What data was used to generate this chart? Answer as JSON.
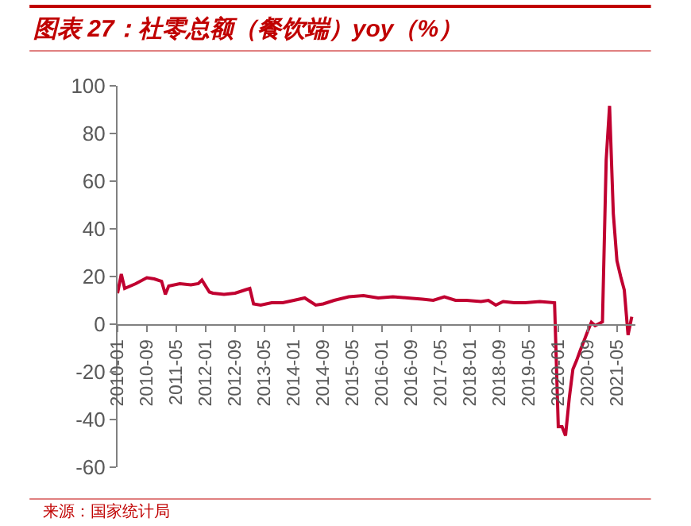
{
  "chart_data": {
    "type": "line",
    "title": "图表 27：社零总额（餐饮端）yoy（%）",
    "annotations": [
      "来源：国家统计局"
    ],
    "x": [
      "2010-01",
      "2010-02",
      "2010-03",
      "2010-06",
      "2010-09",
      "2010-11",
      "2011-01",
      "2011-02",
      "2011-03",
      "2011-06",
      "2011-09",
      "2011-11",
      "2011-12",
      "2012-02",
      "2012-03",
      "2012-06",
      "2012-09",
      "2012-11",
      "2012-12",
      "2013-01",
      "2013-02",
      "2013-04",
      "2013-07",
      "2013-10",
      "2014-01",
      "2014-04",
      "2014-07",
      "2014-09",
      "2014-12",
      "2015-04",
      "2015-08",
      "2015-12",
      "2016-04",
      "2016-08",
      "2016-12",
      "2017-03",
      "2017-06",
      "2017-09",
      "2017-12",
      "2018-04",
      "2018-06",
      "2018-08",
      "2018-10",
      "2019-01",
      "2019-04",
      "2019-08",
      "2019-12",
      "2020-01",
      "2020-02",
      "2020-03",
      "2020-04",
      "2020-05",
      "2020-06",
      "2020-07",
      "2020-08",
      "2020-09",
      "2020-10",
      "2020-11",
      "2020-12",
      "2021-01",
      "2021-02",
      "2021-03",
      "2021-04",
      "2021-05",
      "2021-06",
      "2021-07",
      "2021-08",
      "2021-09"
    ],
    "series": [
      {
        "color": "#c00030",
        "values": [
          13,
          21,
          15,
          17,
          19.5,
          19,
          18,
          12.5,
          16,
          17,
          16.5,
          17,
          18.5,
          13.5,
          13,
          12.5,
          13,
          14,
          14.5,
          15,
          8.5,
          8,
          9,
          9,
          10,
          11,
          8,
          8.5,
          10,
          11.5,
          12,
          11,
          11.5,
          11,
          10.5,
          10,
          11.5,
          10,
          10,
          9.5,
          10,
          8,
          9.5,
          9,
          9,
          9.5,
          9,
          -43,
          -43,
          -46.8,
          -31,
          -18.9,
          -15.2,
          -11,
          -7,
          -2.9,
          0.8,
          -0.6,
          0.2,
          1,
          69,
          91.6,
          46.4,
          26.6,
          20,
          14.3,
          -4.5,
          3.1
        ]
      }
    ],
    "xlim": [
      "2010-01",
      "2021-10"
    ],
    "xticks": [
      {
        "value": "2010-01",
        "label": "2010-01"
      },
      {
        "value": "2010-09",
        "label": "2010-09"
      },
      {
        "value": "2011-05",
        "label": "2011-05"
      },
      {
        "value": "2012-01",
        "label": "2012-01"
      },
      {
        "value": "2012-09",
        "label": "2012-09"
      },
      {
        "value": "2013-05",
        "label": "2013-05"
      },
      {
        "value": "2014-01",
        "label": "2014-01"
      },
      {
        "value": "2014-09",
        "label": "2014-09"
      },
      {
        "value": "2015-05",
        "label": "2015-05"
      },
      {
        "value": "2016-01",
        "label": "2016-01"
      },
      {
        "value": "2016-09",
        "label": "2016-09"
      },
      {
        "value": "2017-05",
        "label": "2017-05"
      },
      {
        "value": "2018-01",
        "label": "2018-01"
      },
      {
        "value": "2018-09",
        "label": "2018-09"
      },
      {
        "value": "2019-05",
        "label": "2019-05"
      },
      {
        "value": "2020-01",
        "label": "2020-01"
      },
      {
        "value": "2020-09",
        "label": "2020-09"
      },
      {
        "value": "2021-05",
        "label": "2021-05"
      }
    ],
    "ylim": [
      -60,
      100
    ],
    "yticks": [
      -60,
      -40,
      -20,
      0,
      20,
      40,
      60,
      80,
      100
    ],
    "marker": "none",
    "line_style": "solid"
  }
}
